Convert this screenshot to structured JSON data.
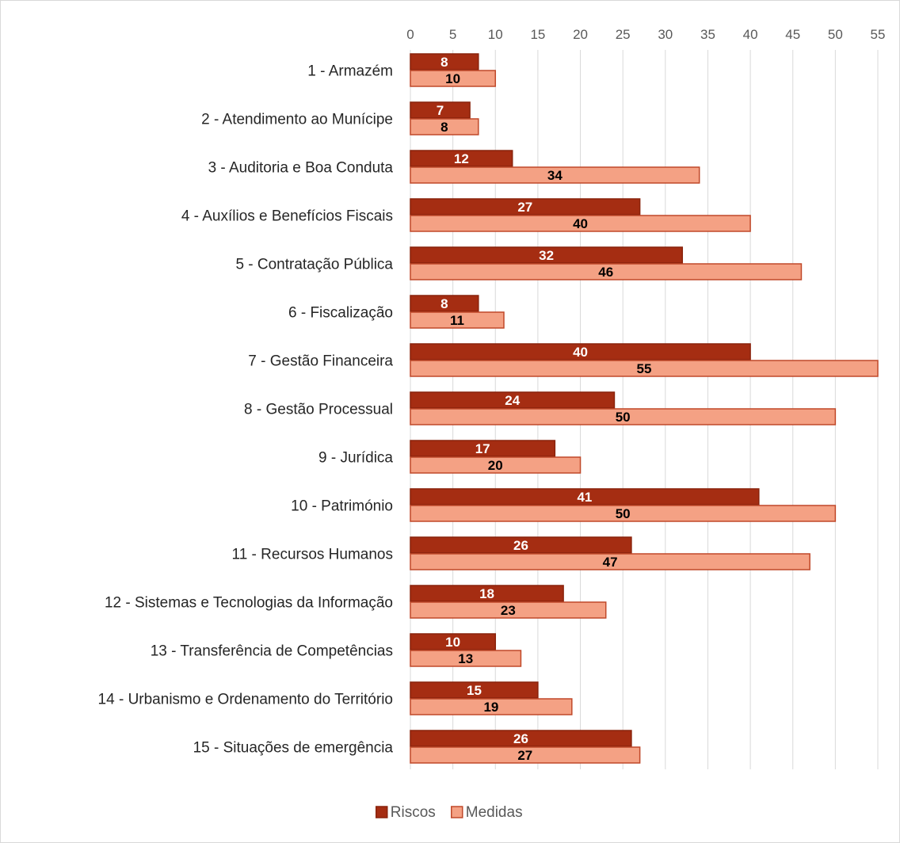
{
  "chart_data": {
    "type": "bar",
    "orientation": "horizontal",
    "categories": [
      "1 - Armazém",
      "2 - Atendimento ao Munícipe",
      "3 - Auditoria e Boa Conduta",
      "4 - Auxílios e Benefícios Fiscais",
      "5 - Contratação Pública",
      "6 - Fiscalização",
      "7 - Gestão Financeira",
      "8 - Gestão Processual",
      "9 - Jurídica",
      "10 - Património",
      "11 - Recursos Humanos",
      "12 - Sistemas e Tecnologias da Informação",
      "13 - Transferência de Competências",
      "14 - Urbanismo e Ordenamento do Território",
      "15 - Situações de emergência"
    ],
    "series": [
      {
        "name": "Riscos",
        "color": "#a52d12",
        "label_color": "#ffffff",
        "values": [
          8,
          7,
          12,
          27,
          32,
          8,
          40,
          24,
          17,
          41,
          26,
          18,
          10,
          15,
          26
        ]
      },
      {
        "name": "Medidas",
        "color": "#f4a184",
        "label_color": "#000000",
        "values": [
          10,
          8,
          34,
          40,
          46,
          11,
          55,
          50,
          20,
          50,
          47,
          23,
          13,
          19,
          27
        ]
      }
    ],
    "xlim": [
      0,
      55
    ],
    "x_ticks": [
      0,
      5,
      10,
      15,
      20,
      25,
      30,
      35,
      40,
      45,
      50,
      55
    ],
    "x_axis_position": "top",
    "grid": true,
    "legend_position": "bottom",
    "data_labels": true,
    "title": "",
    "xlabel": "",
    "ylabel": ""
  }
}
